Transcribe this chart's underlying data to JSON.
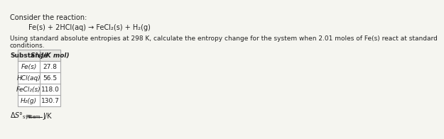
{
  "title_line1": "Consider the reaction:",
  "reaction": "Fe(s) + 2HCl(aq) → FeCl₂(s) + H₂(g)",
  "description": "Using standard absolute entropies at 298 K, calculate the entropy change for the system when 2.01 moles of Fe(s) react at standard",
  "description2": "conditions.",
  "table_header_col1": "Substance",
  "table_header_col2": "S°(J/K mol)",
  "table_rows": [
    [
      "Fe(s)",
      "27.8"
    ],
    [
      "HCl(aq)",
      "56.5"
    ],
    [
      "FeCl₂(s)",
      "118.0"
    ],
    [
      "H₂(g)",
      "130.7"
    ]
  ],
  "bg_color": "#f5f5f0",
  "table_bg": "#ffffff",
  "text_color": "#222222",
  "border_color": "#aaaaaa"
}
